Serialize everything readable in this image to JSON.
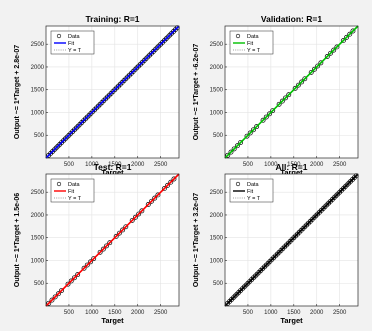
{
  "chart_data": [
    {
      "type": "scatter",
      "title": "Training: R=1",
      "xlabel": "Target",
      "ylabel": "Output ~= 1*Target + 2.8e-07",
      "xlim": [
        0,
        2900
      ],
      "ylim": [
        0,
        2900
      ],
      "xticks": [
        500,
        1000,
        1500,
        2000,
        2500
      ],
      "yticks": [
        500,
        1000,
        1500,
        2000,
        2500
      ],
      "legend": [
        "Data",
        "Fit",
        "Y = T"
      ],
      "legend_position": "top-left",
      "fit_color": "#0000ff",
      "data_points": "dense",
      "series": [
        {
          "name": "Fit",
          "x": [
            0,
            2900
          ],
          "y": [
            0,
            2900
          ]
        },
        {
          "name": "Y = T",
          "x": [
            0,
            2900
          ],
          "y": [
            0,
            2900
          ]
        }
      ]
    },
    {
      "type": "scatter",
      "title": "Validation: R=1",
      "xlabel": "Target",
      "ylabel": "Output ~= 1*Target + -6.2e-07",
      "xlim": [
        0,
        2900
      ],
      "ylim": [
        0,
        2900
      ],
      "xticks": [
        500,
        1000,
        1500,
        2000,
        2500
      ],
      "yticks": [
        500,
        1000,
        1500,
        2000,
        2500
      ],
      "legend": [
        "Data",
        "Fit",
        "Y = T"
      ],
      "legend_position": "top-left",
      "fit_color": "#00c000",
      "data_points": "sparse",
      "series": [
        {
          "name": "Fit",
          "x": [
            0,
            2900
          ],
          "y": [
            0,
            2900
          ]
        },
        {
          "name": "Y = T",
          "x": [
            0,
            2900
          ],
          "y": [
            0,
            2900
          ]
        }
      ]
    },
    {
      "type": "scatter",
      "title": "Test: R=1",
      "xlabel": "Target",
      "ylabel": "Output ~= 1*Target + 1.5e-06",
      "xlim": [
        0,
        2900
      ],
      "ylim": [
        0,
        2900
      ],
      "xticks": [
        500,
        1000,
        1500,
        2000,
        2500
      ],
      "yticks": [
        500,
        1000,
        1500,
        2000,
        2500
      ],
      "legend": [
        "Data",
        "Fit",
        "Y = T"
      ],
      "legend_position": "top-left",
      "fit_color": "#ff0000",
      "data_points": "sparse",
      "series": [
        {
          "name": "Fit",
          "x": [
            0,
            2900
          ],
          "y": [
            0,
            2900
          ]
        },
        {
          "name": "Y = T",
          "x": [
            0,
            2900
          ],
          "y": [
            0,
            2900
          ]
        }
      ]
    },
    {
      "type": "scatter",
      "title": "All: R=1",
      "xlabel": "Target",
      "ylabel": "Output ~= 1*Target + 3.2e-07",
      "xlim": [
        0,
        2900
      ],
      "ylim": [
        0,
        2900
      ],
      "xticks": [
        500,
        1000,
        1500,
        2000,
        2500
      ],
      "yticks": [
        500,
        1000,
        1500,
        2000,
        2500
      ],
      "legend": [
        "Data",
        "Fit",
        "Y = T"
      ],
      "legend_position": "top-left",
      "fit_color": "#000000",
      "data_points": "dense",
      "series": [
        {
          "name": "Fit",
          "x": [
            0,
            2900
          ],
          "y": [
            0,
            2900
          ]
        },
        {
          "name": "Y = T",
          "x": [
            0,
            2900
          ],
          "y": [
            0,
            2900
          ]
        }
      ]
    }
  ]
}
